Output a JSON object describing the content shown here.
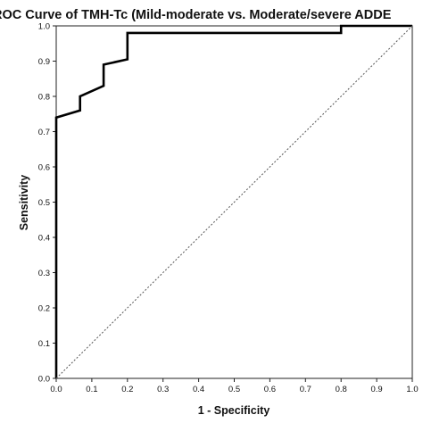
{
  "chart_data": {
    "type": "line",
    "title": "ROC Curve of TMH-Tc (Mild-moderate vs. Moderate/severe ADDE",
    "xlabel": "1 - Specificity",
    "ylabel": "Sensitivity",
    "xlim": [
      0,
      1
    ],
    "ylim": [
      0,
      1
    ],
    "x_ticks": [
      "0.0",
      "0.1",
      "0.2",
      "0.3",
      "0.4",
      "0.5",
      "0.6",
      "0.7",
      "0.8",
      "0.9",
      "1.0"
    ],
    "y_ticks": [
      "0.0",
      "0.1",
      "0.2",
      "0.3",
      "0.4",
      "0.5",
      "0.6",
      "0.7",
      "0.8",
      "0.9",
      "1.0"
    ],
    "grid": false,
    "series": [
      {
        "style": "solid",
        "color": "#000000",
        "x": [
          0.0,
          0.0,
          0.067,
          0.067,
          0.133,
          0.133,
          0.2,
          0.2,
          0.8,
          0.8,
          1.0
        ],
        "y": [
          0.0,
          0.74,
          0.76,
          0.8,
          0.83,
          0.89,
          0.905,
          0.98,
          0.98,
          1.0,
          1.0
        ]
      },
      {
        "style": "dotted",
        "color": "#555555",
        "x": [
          0,
          1
        ],
        "y": [
          0,
          1
        ]
      }
    ]
  }
}
